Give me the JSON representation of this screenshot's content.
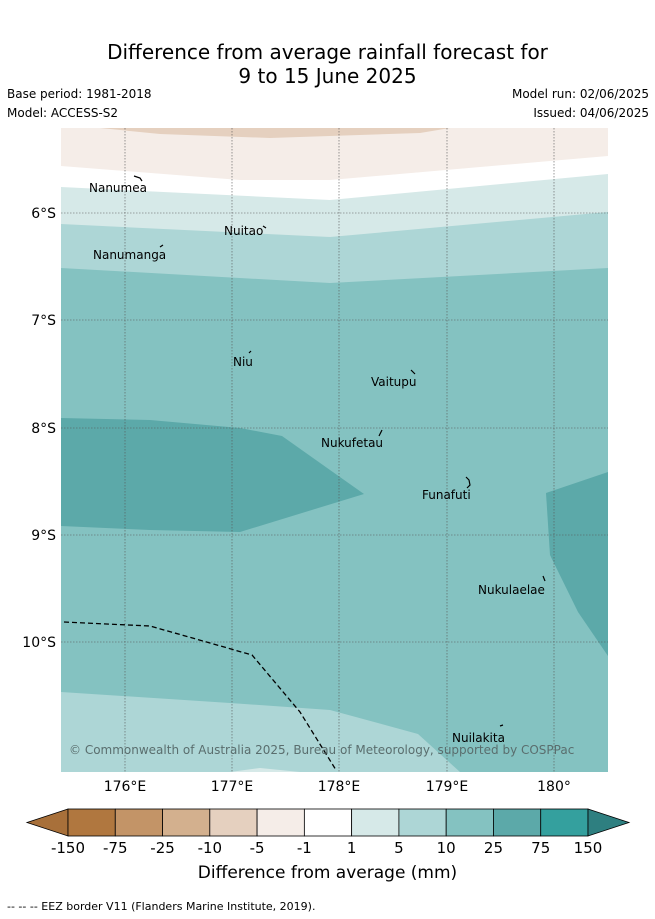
{
  "header": {
    "title_line1": "Difference from average rainfall forecast for",
    "title_line2": "9 to 15 June 2025",
    "base_period": "Base period: 1981-2018",
    "model": "Model: ACCESS-S2",
    "model_run": "Model run: 02/06/2025",
    "issued": "Issued: 04/06/2025"
  },
  "map": {
    "lon_ticks": [
      "176°E",
      "177°E",
      "178°E",
      "179°E",
      "180°"
    ],
    "lat_ticks": [
      "6°S",
      "7°S",
      "8°S",
      "9°S",
      "10°S"
    ],
    "islands": [
      {
        "name": "Nanumea"
      },
      {
        "name": "Nuitao"
      },
      {
        "name": "Nanumanga"
      },
      {
        "name": "Niu"
      },
      {
        "name": "Vaitupu"
      },
      {
        "name": "Nukufetau"
      },
      {
        "name": "Funafuti"
      },
      {
        "name": "Nukulaelae"
      },
      {
        "name": "Nuilakita"
      }
    ],
    "copyright": "© Commonwealth of Australia 2025, Bureau of Meteorology, supported by COSPPac"
  },
  "legend": {
    "labels": [
      "-150",
      "-75",
      "-25",
      "-10",
      "-5",
      "-1",
      "1",
      "5",
      "10",
      "25",
      "75",
      "150"
    ],
    "colors": [
      "#a8703a",
      "#b0773f",
      "#c39467",
      "#d3b08e",
      "#e5d0bf",
      "#f5ede8",
      "#ffffff",
      "#d6e9e8",
      "#add6d6",
      "#84c2c1",
      "#5ca9a9",
      "#34a09e",
      "#2e7f80"
    ],
    "title": "Difference from average (mm)"
  },
  "footnote": "-- -- -- EEZ border V11 (Flanders Marine Institute, 2019)."
}
